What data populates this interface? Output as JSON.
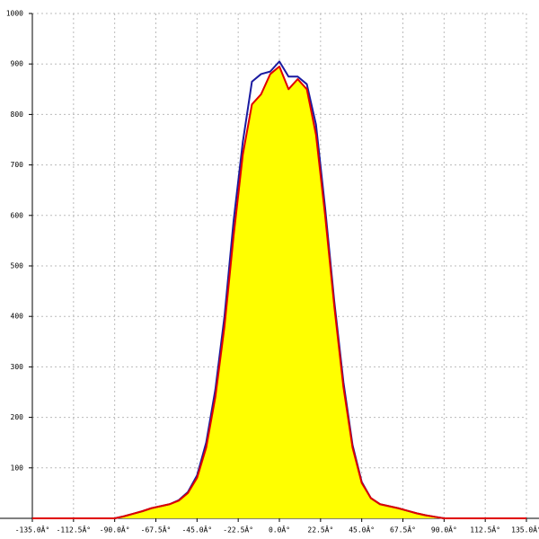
{
  "chart_data": {
    "type": "area",
    "x": [
      -135,
      -90,
      -85,
      -80,
      -75,
      -70,
      -65,
      -60,
      -55,
      -50,
      -45,
      -40,
      -35,
      -30,
      -25,
      -20,
      -15,
      -10,
      -5,
      0,
      5,
      10,
      15,
      20,
      25,
      30,
      35,
      40,
      45,
      50,
      55,
      60,
      65,
      70,
      75,
      80,
      85,
      90,
      135
    ],
    "series": [
      {
        "name": "blue",
        "color": "#1a1aa0",
        "values": [
          0,
          0,
          4,
          9,
          14,
          20,
          24,
          28,
          36,
          52,
          85,
          150,
          255,
          400,
          590,
          745,
          865,
          880,
          885,
          905,
          875,
          875,
          860,
          780,
          615,
          430,
          270,
          145,
          72,
          40,
          28,
          24,
          20,
          15,
          10,
          6,
          3,
          0,
          0
        ]
      },
      {
        "name": "red",
        "color": "#e00000",
        "fill": "#ffff00",
        "values": [
          0,
          0,
          4,
          9,
          14,
          20,
          24,
          28,
          35,
          50,
          80,
          140,
          240,
          380,
          560,
          720,
          820,
          840,
          880,
          895,
          850,
          870,
          850,
          760,
          600,
          420,
          260,
          140,
          70,
          40,
          28,
          24,
          20,
          15,
          10,
          6,
          3,
          0,
          0
        ]
      }
    ],
    "xlim": [
      -135,
      135
    ],
    "xticks": [
      {
        "value": -135,
        "label": "-135.0Â°"
      },
      {
        "value": -112.5,
        "label": "-112.5Â°"
      },
      {
        "value": -90,
        "label": "-90.0Â°"
      },
      {
        "value": -67.5,
        "label": "-67.5Â°"
      },
      {
        "value": -45,
        "label": "-45.0Â°"
      },
      {
        "value": -22.5,
        "label": "-22.5Â°"
      },
      {
        "value": 0,
        "label": "0.0Â°"
      },
      {
        "value": 22.5,
        "label": "22.5Â°"
      },
      {
        "value": 45,
        "label": "45.0Â°"
      },
      {
        "value": 67.5,
        "label": "67.5Â°"
      },
      {
        "value": 90,
        "label": "90.0Â°"
      },
      {
        "value": 112.5,
        "label": "112.5Â°"
      },
      {
        "value": 135,
        "label": "135.0Â°"
      }
    ],
    "ylim": [
      0,
      1000
    ],
    "yticks": [
      100,
      200,
      300,
      400,
      500,
      600,
      700,
      800,
      900,
      1000
    ],
    "grid": true
  }
}
